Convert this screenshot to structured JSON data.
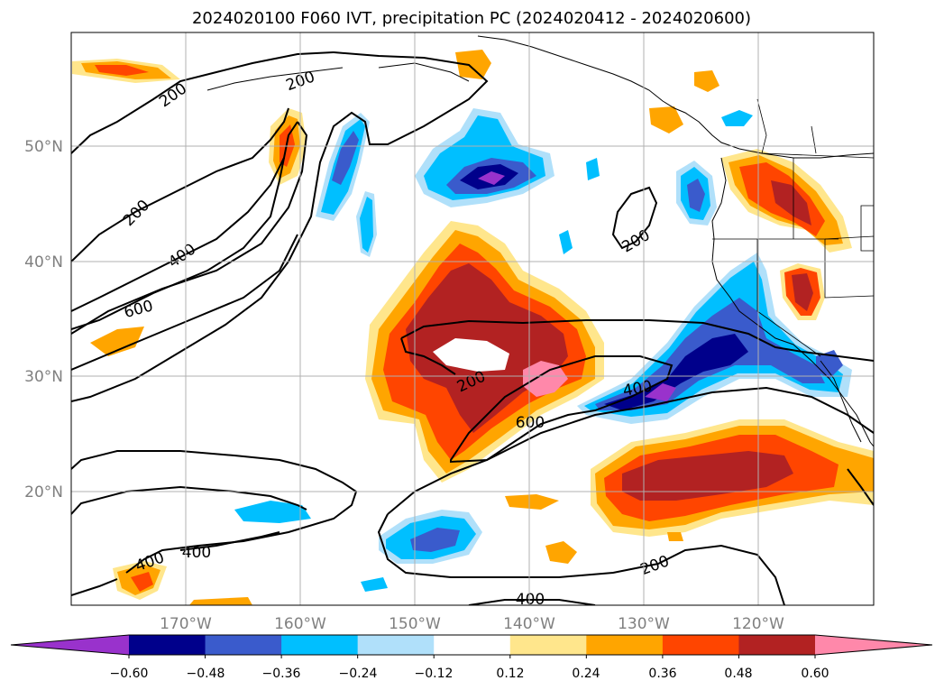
{
  "title": "2024020100 F060 IVT, precipitation PC (2024020412 - 2024020600)",
  "map": {
    "lat_ticks": [
      "50°N",
      "40°N",
      "30°N",
      "20°N"
    ],
    "lon_ticks": [
      "170°W",
      "160°W",
      "150°W",
      "140°W",
      "130°W",
      "120°W"
    ],
    "grid": true,
    "contour_labels": [
      "200",
      "200",
      "200",
      "200",
      "400",
      "600",
      "200",
      "400",
      "600",
      "400",
      "400",
      "200",
      "400"
    ]
  },
  "colorbar": {
    "ticks": [
      "−0.60",
      "−0.48",
      "−0.36",
      "−0.24",
      "−0.12",
      "0.12",
      "0.24",
      "0.36",
      "0.48",
      "0.60"
    ],
    "colors": [
      "#9932cc",
      "#00008b",
      "#3a5bcc",
      "#00bfff",
      "#b0e0fa",
      "#ffffff",
      "#ffe68c",
      "#ffa500",
      "#ff4500",
      "#b22222",
      "#ff88aa"
    ],
    "extend": "both"
  },
  "colors": {
    "land": "#ffffff",
    "contour": "#000000",
    "grid": "#b0b0b0"
  }
}
